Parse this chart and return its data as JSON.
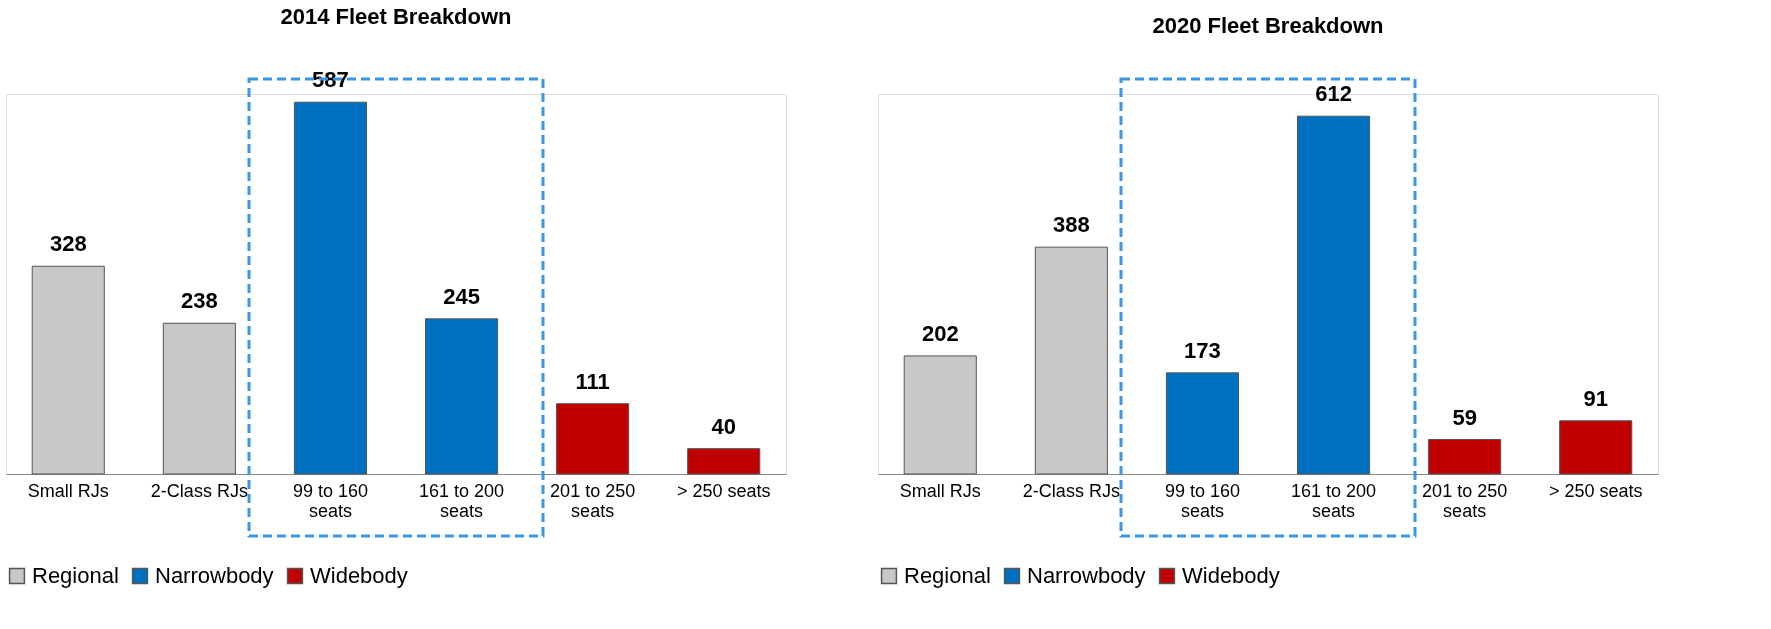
{
  "chart_data": [
    {
      "type": "bar",
      "title": "2014 Fleet Breakdown",
      "categories": [
        "Small RJs",
        "2-Class RJs",
        "99 to 160 seats",
        "161 to 200 seats",
        "201 to 250 seats",
        "> 250 seats"
      ],
      "series": [
        {
          "name": "Regional",
          "color": "#c8c8c8",
          "values": [
            328,
            238,
            null,
            null,
            null,
            null
          ]
        },
        {
          "name": "Narrowbody",
          "color": "#0070c0",
          "values": [
            null,
            null,
            587,
            245,
            null,
            null
          ]
        },
        {
          "name": "Widebody",
          "color": "#c00000",
          "values": [
            null,
            null,
            null,
            null,
            111,
            40
          ]
        }
      ],
      "data_labels": true,
      "legend": "bottom",
      "grid": false
    },
    {
      "type": "bar",
      "title": "2020 Fleet Breakdown",
      "categories": [
        "Small RJs",
        "2-Class RJs",
        "99 to 160 seats",
        "161 to 200 seats",
        "201 to 250 seats",
        "> 250 seats"
      ],
      "series": [
        {
          "name": "Regional",
          "color": "#c8c8c8",
          "values": [
            202,
            388,
            null,
            null,
            null,
            null
          ]
        },
        {
          "name": "Narrowbody",
          "color": "#0070c0",
          "values": [
            null,
            null,
            173,
            612,
            null,
            null
          ]
        },
        {
          "name": "Widebody",
          "color": "#c00000",
          "values": [
            null,
            null,
            null,
            null,
            59,
            91
          ]
        }
      ],
      "data_labels": true,
      "legend": "bottom",
      "grid": false
    }
  ]
}
